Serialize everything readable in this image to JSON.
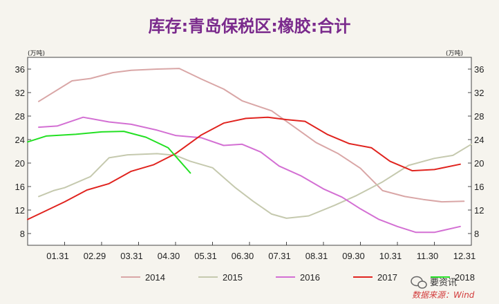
{
  "chart_data": {
    "type": "line",
    "title": "库存:青岛保税区:橡胶:合计",
    "unit_left": "(万吨)",
    "unit_right": "(万吨)",
    "ylim": [
      6,
      38
    ],
    "yticks": [
      8,
      12,
      16,
      20,
      24,
      28,
      32,
      36
    ],
    "categories": [
      "01.31",
      "02.29",
      "03.31",
      "04.30",
      "05.31",
      "06.30",
      "07.31",
      "08.31",
      "09.30",
      "10.31",
      "11.30",
      "12.31"
    ],
    "grid": false,
    "legend_position": "bottom",
    "series": [
      {
        "name": "2014",
        "color": "#d9a6a6",
        "x": [
          0.3,
          1.2,
          1.7,
          2.3,
          2.8,
          3.5,
          4.1,
          4.7,
          5.3,
          5.8,
          6.6,
          7.2,
          7.8,
          8.4,
          9.0,
          9.6,
          10.2,
          10.7,
          11.2,
          11.8
        ],
        "y": [
          30.5,
          34.0,
          34.4,
          35.4,
          35.8,
          36.0,
          36.1,
          34.3,
          32.6,
          30.6,
          28.9,
          26.2,
          23.5,
          21.6,
          19.1,
          15.3,
          14.3,
          13.8,
          13.4,
          13.5
        ]
      },
      {
        "name": "2015",
        "color": "#c5c9ae",
        "x": [
          0.3,
          0.7,
          1.0,
          1.7,
          2.2,
          2.7,
          3.5,
          4.0,
          4.4,
          5.0,
          5.6,
          6.1,
          6.6,
          7.0,
          7.6,
          8.3,
          8.9,
          9.6,
          10.3,
          11.0,
          11.5,
          12.0
        ],
        "y": [
          14.3,
          15.3,
          15.8,
          17.7,
          20.9,
          21.4,
          21.6,
          21.3,
          20.3,
          19.2,
          15.9,
          13.5,
          11.3,
          10.6,
          11.0,
          12.8,
          14.5,
          16.8,
          19.6,
          20.8,
          21.3,
          23.2
        ]
      },
      {
        "name": "2016",
        "color": "#d36fd3",
        "x": [
          0.3,
          0.8,
          1.5,
          2.2,
          2.8,
          3.5,
          4.0,
          4.7,
          5.3,
          5.8,
          6.3,
          6.8,
          7.4,
          8.0,
          8.5,
          9.0,
          9.5,
          10.0,
          10.5,
          11.0,
          11.7
        ],
        "y": [
          26.1,
          26.3,
          27.8,
          27.0,
          26.6,
          25.6,
          24.7,
          24.3,
          23.0,
          23.2,
          21.9,
          19.5,
          17.8,
          15.6,
          14.2,
          12.2,
          10.4,
          9.2,
          8.2,
          8.2,
          9.2
        ]
      },
      {
        "name": "2017",
        "color": "#e0231e",
        "x": [
          0.0,
          0.5,
          1.0,
          1.6,
          2.2,
          2.8,
          3.4,
          4.0,
          4.7,
          5.3,
          5.9,
          6.5,
          7.0,
          7.5,
          8.1,
          8.7,
          9.3,
          9.8,
          10.4,
          11.0,
          11.7
        ],
        "y": [
          10.4,
          11.9,
          13.4,
          15.4,
          16.5,
          18.6,
          19.7,
          21.6,
          24.8,
          26.8,
          27.6,
          27.8,
          27.4,
          27.1,
          24.9,
          23.3,
          22.6,
          20.3,
          18.7,
          18.9,
          19.8
        ]
      },
      {
        "name": "2018",
        "color": "#22e022",
        "x": [
          0.0,
          0.5,
          1.3,
          2.0,
          2.6,
          3.2,
          3.8,
          4.4
        ],
        "y": [
          23.6,
          24.6,
          24.9,
          25.3,
          25.4,
          24.4,
          22.6,
          18.3
        ]
      }
    ]
  },
  "watermark": {
    "label": "要资讯",
    "icon": "wechat-icon"
  },
  "source": "数据来源：Wind"
}
